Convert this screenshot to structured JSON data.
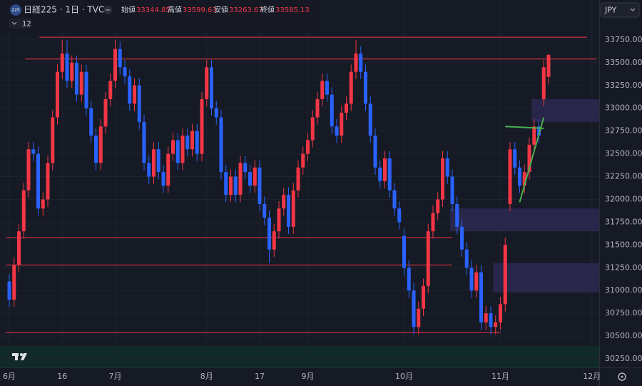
{
  "header": {
    "logo": "225",
    "title": "日経225 · 1日 · TVC",
    "open_label": "始値",
    "high_label": "高値",
    "low_label": "安値",
    "close_label": "終値",
    "indicators": "12",
    "currency": "JPY"
  },
  "chart_data": {
    "type": "candlestick",
    "categories": [
      "6月",
      null,
      null,
      null,
      null,
      null,
      null,
      null,
      null,
      null,
      null,
      "16",
      null,
      null,
      null,
      null,
      null,
      null,
      null,
      null,
      null,
      null,
      "7月",
      null,
      null,
      null,
      null,
      null,
      null,
      null,
      null,
      null,
      null,
      null,
      null,
      null,
      null,
      null,
      null,
      null,
      null,
      "8月",
      null,
      null,
      null,
      null,
      null,
      null,
      null,
      null,
      null,
      null,
      "17",
      null,
      null,
      null,
      null,
      null,
      null,
      null,
      null,
      null,
      "9月",
      null,
      null,
      null,
      null,
      null,
      null,
      null,
      null,
      null,
      null,
      null,
      null,
      null,
      null,
      null,
      null,
      null,
      null,
      null,
      "10月",
      null,
      null,
      null,
      null,
      null,
      null,
      null,
      null,
      null,
      null,
      null,
      null,
      null,
      null,
      null,
      null,
      null,
      null,
      null,
      "11月",
      null,
      null,
      null,
      null,
      null,
      null,
      null,
      null,
      null,
      null,
      null,
      null,
      null,
      null,
      null,
      null,
      null,
      null,
      "12月",
      null
    ],
    "series": [
      {
        "up_color": "#f23645",
        "down_color": "#2962ff",
        "open": [
          31100,
          30900,
          31280,
          31650,
          32100,
          32550,
          32500,
          31900,
          32000,
          32400,
          32900,
          33400,
          33600,
          33300,
          33500,
          33150,
          33400,
          33000,
          32700,
          32400,
          32800,
          33100,
          33300,
          33650,
          33450,
          33350,
          33050,
          33250,
          32850,
          32400,
          32250,
          32550,
          32300,
          32150,
          32500,
          32650,
          32400,
          32700,
          32550,
          32750,
          32500,
          33100,
          33450,
          33000,
          32900,
          32300,
          32050,
          32250,
          32050,
          32400,
          32300,
          32150,
          32350,
          31950,
          31800,
          31450,
          31650,
          31900,
          32050,
          31700,
          32100,
          32350,
          32500,
          32650,
          32900,
          33100,
          33300,
          33150,
          32800,
          32700,
          32950,
          33050,
          33400,
          33600,
          33400,
          33050,
          32700,
          32350,
          32200,
          32450,
          32100,
          31900,
          31600,
          31250,
          31000,
          30600,
          30800,
          31050,
          31650,
          31850,
          32000,
          32450,
          32250,
          31950,
          31700,
          31450,
          31250,
          31000,
          31200,
          30650,
          30750,
          30600,
          30650,
          30850,
          31950,
          32550,
          32350,
          32150,
          32300,
          32600,
          32800,
          33100,
          33344.85,
          null,
          null,
          null,
          null,
          null,
          null,
          null,
          null,
          null,
          null
        ],
        "high": [
          31180,
          31360,
          31730,
          32180,
          32630,
          32630,
          32580,
          32080,
          32480,
          32980,
          33480,
          33750,
          33750,
          33580,
          33580,
          33480,
          33480,
          33080,
          32780,
          32880,
          33180,
          33380,
          33750,
          33730,
          33530,
          33430,
          33330,
          33330,
          32930,
          32480,
          32630,
          32630,
          32380,
          32580,
          32730,
          32730,
          32780,
          32780,
          32830,
          32830,
          33180,
          33530,
          33530,
          33080,
          32980,
          32380,
          32330,
          32330,
          32480,
          32480,
          32380,
          32430,
          32430,
          32030,
          31880,
          31730,
          31980,
          32130,
          32130,
          32180,
          32430,
          32580,
          32730,
          32980,
          33180,
          33380,
          33380,
          33230,
          32880,
          33030,
          33130,
          33480,
          33750,
          33680,
          33480,
          33130,
          32780,
          32430,
          32530,
          32530,
          32180,
          31980,
          31680,
          31330,
          31080,
          30880,
          31130,
          31730,
          31930,
          32080,
          32530,
          32530,
          32330,
          32030,
          31780,
          31530,
          31330,
          31280,
          31280,
          30830,
          30830,
          30730,
          30930,
          31580,
          32630,
          32630,
          32430,
          32380,
          32680,
          32880,
          32880,
          33530,
          33599.63,
          null,
          null,
          null,
          null,
          null,
          null,
          null,
          null,
          null,
          null
        ],
        "low": [
          30820,
          30820,
          31200,
          31570,
          32020,
          32420,
          31820,
          31820,
          31920,
          32320,
          32820,
          33320,
          33220,
          33220,
          33070,
          33070,
          32920,
          32620,
          32320,
          32320,
          32720,
          33020,
          33220,
          33370,
          33270,
          32970,
          32970,
          32770,
          32320,
          32170,
          32170,
          32220,
          32070,
          32070,
          32420,
          32320,
          32320,
          32470,
          32470,
          32420,
          32420,
          33020,
          32920,
          32820,
          32220,
          31970,
          31970,
          31970,
          31970,
          32220,
          32070,
          32070,
          31870,
          31720,
          31300,
          31370,
          31570,
          31820,
          31620,
          31620,
          32020,
          32270,
          32420,
          32570,
          32820,
          33020,
          33070,
          32720,
          32620,
          32620,
          32870,
          32970,
          33320,
          33320,
          32970,
          32620,
          32270,
          32120,
          32120,
          32020,
          31820,
          31670,
          31170,
          30920,
          30520,
          30520,
          30720,
          30970,
          31570,
          31770,
          31920,
          32170,
          31870,
          31620,
          31370,
          31170,
          30920,
          30920,
          30560,
          30570,
          30520,
          30520,
          30570,
          30770,
          31870,
          32270,
          32070,
          32070,
          32220,
          32520,
          32620,
          33020,
          33263.67,
          null,
          null,
          null,
          null,
          null,
          null,
          null,
          null,
          null,
          null
        ],
        "close": [
          30900,
          31280,
          31650,
          32100,
          32550,
          32500,
          31900,
          32000,
          32400,
          32900,
          33400,
          33600,
          33300,
          33500,
          33150,
          33400,
          33000,
          32700,
          32400,
          32800,
          33100,
          33300,
          33650,
          33450,
          33350,
          33050,
          33250,
          32850,
          32400,
          32250,
          32550,
          32300,
          32150,
          32500,
          32650,
          32400,
          32700,
          32550,
          32750,
          32500,
          33100,
          33450,
          33000,
          32900,
          32300,
          32050,
          32250,
          32050,
          32400,
          32300,
          32150,
          32350,
          31950,
          31800,
          31450,
          31650,
          31900,
          32050,
          31700,
          32100,
          32350,
          32500,
          32650,
          32900,
          33100,
          33300,
          33150,
          32800,
          32700,
          32950,
          33050,
          33400,
          33600,
          33400,
          33050,
          32700,
          32350,
          32200,
          32450,
          32100,
          31900,
          31750,
          31250,
          31000,
          30600,
          30800,
          31050,
          31650,
          31850,
          32000,
          32450,
          32250,
          31950,
          31700,
          31450,
          31250,
          31000,
          31200,
          30650,
          30750,
          30600,
          30650,
          30850,
          31500,
          32550,
          32350,
          32150,
          32300,
          32600,
          32800,
          32700,
          33450,
          33585.13,
          null,
          null,
          null,
          null,
          null,
          null,
          null,
          null,
          null,
          null
        ]
      }
    ],
    "ylim": [
      30156,
      34188
    ],
    "yticks": [
      {
        "value": 30250,
        "label": "30250.00"
      },
      {
        "value": 30500,
        "label": "30500.00"
      },
      {
        "value": 30750,
        "label": "30750.00"
      },
      {
        "value": 31000,
        "label": "31000.00"
      },
      {
        "value": 31250,
        "label": "31250.00"
      },
      {
        "value": 31500,
        "label": "31500.00"
      },
      {
        "value": 31750,
        "label": "31750.00"
      },
      {
        "value": 32000,
        "label": "32000.00"
      },
      {
        "value": 32250,
        "label": "32250.00"
      },
      {
        "value": 32500,
        "label": "32500.00"
      },
      {
        "value": 32750,
        "label": "32750.00"
      },
      {
        "value": 33000,
        "label": "33000.00"
      },
      {
        "value": 33250,
        "label": "33250.00"
      },
      {
        "value": 33500,
        "label": "33500.00"
      },
      {
        "value": 33750,
        "label": "33750.00"
      }
    ],
    "grid": true,
    "levels": [
      {
        "value": 33780,
        "from": 7,
        "to": 120,
        "color": "#f23645"
      },
      {
        "value": 33540,
        "from": 4,
        "to": 122,
        "color": "#f23645"
      },
      {
        "value": 31580,
        "from": 0,
        "to": 92,
        "color": "#f23645"
      },
      {
        "value": 31280,
        "from": 0,
        "to": 92,
        "color": "#f23645"
      },
      {
        "value": 30540,
        "from": 0,
        "to": 102,
        "color": "#f23645"
      }
    ],
    "zones": [
      {
        "low": 32850,
        "high": 33100,
        "from": 109,
        "to": 122,
        "color": "#2a2950"
      },
      {
        "low": 31650,
        "high": 31900,
        "from": 92,
        "to": 122,
        "color": "#2a2950"
      },
      {
        "low": 30980,
        "high": 31300,
        "from": 101,
        "to": 122,
        "color": "#2a2950"
      }
    ],
    "trendlines": [
      {
        "x": [
          106,
          111
        ],
        "y": [
          31970,
          32900
        ],
        "color": "#4caf50"
      },
      {
        "x": [
          103,
          111
        ],
        "y": [
          32800,
          32780
        ],
        "color": "#4caf50"
      }
    ]
  }
}
